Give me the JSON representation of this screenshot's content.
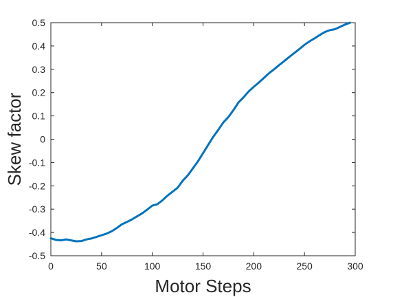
{
  "chart_data": {
    "type": "line",
    "title": "",
    "xlabel": "Motor Steps",
    "ylabel": "Skew factor",
    "xlim": [
      0,
      300
    ],
    "ylim": [
      -0.5,
      0.5
    ],
    "xticks": [
      0,
      50,
      100,
      150,
      200,
      250,
      300
    ],
    "xtick_labels": [
      "0",
      "50",
      "100",
      "150",
      "200",
      "250",
      "300"
    ],
    "yticks": [
      -0.5,
      -0.4,
      -0.3,
      -0.2,
      -0.1,
      0,
      0.1,
      0.2,
      0.3,
      0.4,
      0.5
    ],
    "ytick_labels": [
      "-0.5",
      "-0.4",
      "-0.3",
      "-0.2",
      "-0.1",
      "0",
      "0.1",
      "0.2",
      "0.3",
      "0.4",
      "0.5"
    ],
    "grid": false,
    "legend": "none",
    "series": [
      {
        "color": "#0072BD",
        "x": [
          0,
          5,
          10,
          15,
          20,
          25,
          30,
          35,
          40,
          45,
          50,
          55,
          60,
          65,
          70,
          75,
          80,
          85,
          90,
          95,
          100,
          105,
          110,
          115,
          120,
          125,
          130,
          135,
          140,
          145,
          150,
          155,
          160,
          165,
          170,
          175,
          180,
          185,
          190,
          195,
          200,
          205,
          210,
          215,
          220,
          225,
          230,
          235,
          240,
          245,
          250,
          255,
          260,
          265,
          270,
          275,
          280,
          285,
          290,
          295
        ],
        "y": [
          -0.425,
          -0.432,
          -0.434,
          -0.43,
          -0.434,
          -0.438,
          -0.437,
          -0.43,
          -0.426,
          -0.419,
          -0.412,
          -0.405,
          -0.395,
          -0.381,
          -0.365,
          -0.355,
          -0.344,
          -0.331,
          -0.318,
          -0.302,
          -0.285,
          -0.279,
          -0.262,
          -0.242,
          -0.225,
          -0.208,
          -0.178,
          -0.155,
          -0.125,
          -0.095,
          -0.06,
          -0.025,
          0.01,
          0.04,
          0.072,
          0.095,
          0.125,
          0.158,
          0.18,
          0.205,
          0.225,
          0.243,
          0.263,
          0.283,
          0.3,
          0.318,
          0.335,
          0.353,
          0.37,
          0.387,
          0.405,
          0.42,
          0.433,
          0.447,
          0.46,
          0.468,
          0.472,
          0.482,
          0.492,
          0.5
        ]
      }
    ]
  }
}
